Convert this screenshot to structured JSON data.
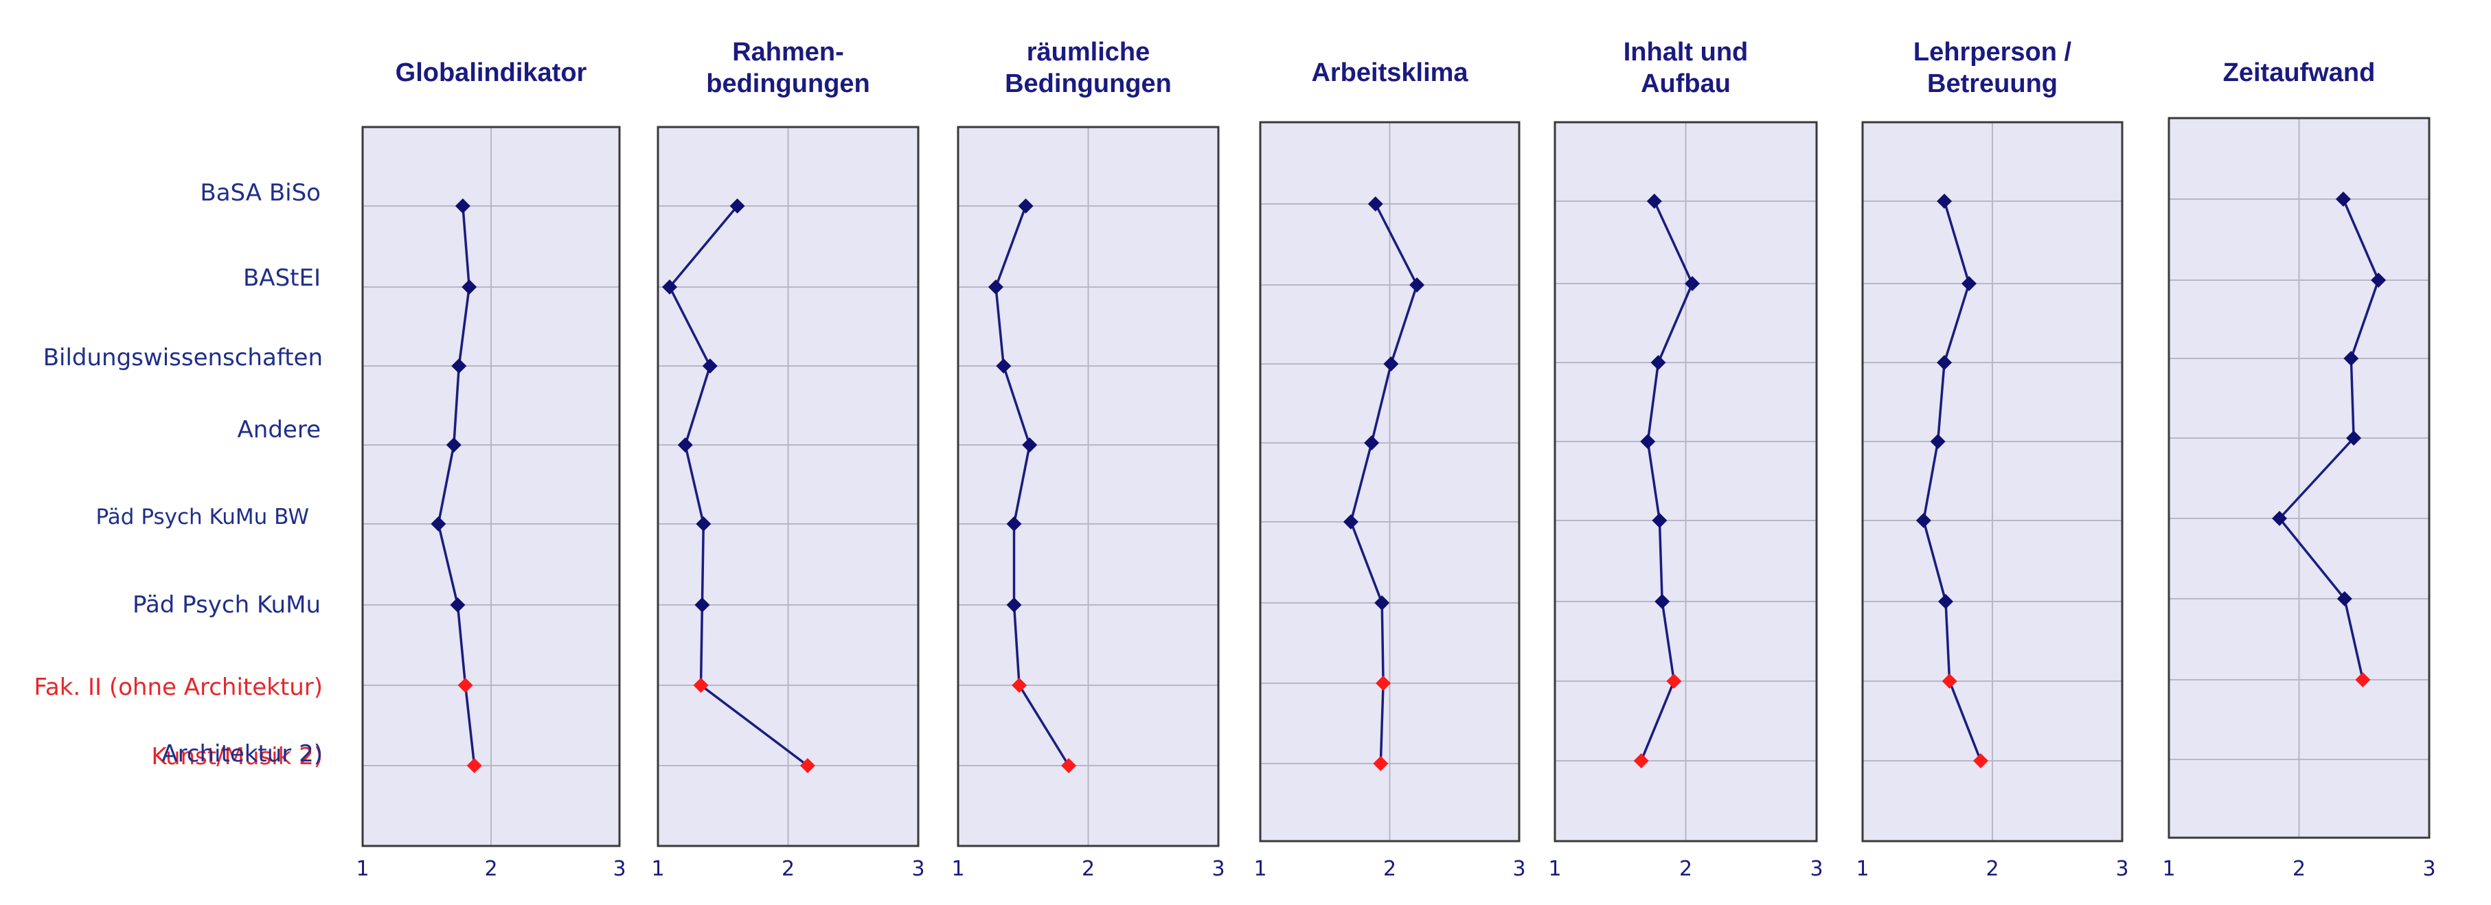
{
  "chart_data": {
    "type": "line",
    "orientation": "horizontal-profile",
    "categories": [
      "BaSA BiSo",
      "BAStEI",
      "Bildungswissenschaften",
      "Andere",
      "Päd Psych KuMu BW",
      "Päd Psych KuMu",
      "Fak. II (ohne Architektur)",
      "Kunst/Musik 2)"
    ],
    "overlay_label": "Architektur 2)",
    "xlim": [
      1,
      3
    ],
    "xticks": [
      "1",
      "2",
      "3"
    ],
    "grid": true,
    "colors": {
      "line": "#1c1c80",
      "marker": "#0f0f70",
      "highlight": "#ff1a1a",
      "panel_bg": "#e6e6f4",
      "grid": "#b7b7c6",
      "title": "#1a1a80",
      "label": "#1f2e8a",
      "label_red": "#e8262a"
    },
    "panels": [
      {
        "title_lines": [
          "Globalindikator"
        ],
        "values": [
          1.78,
          1.83,
          1.75,
          1.71,
          1.59,
          1.74,
          1.8,
          1.87
        ],
        "highlight": [
          6,
          7
        ]
      },
      {
        "title_lines": [
          "Rahmen-",
          "bedingungen"
        ],
        "values": [
          1.61,
          1.09,
          1.4,
          1.21,
          1.35,
          1.34,
          1.33,
          2.15
        ],
        "highlight": [
          6,
          7
        ]
      },
      {
        "title_lines": [
          "räumliche",
          "Bedingungen"
        ],
        "values": [
          1.52,
          1.29,
          1.35,
          1.55,
          1.43,
          1.43,
          1.47,
          1.85
        ],
        "highlight": [
          6,
          7
        ]
      },
      {
        "title_lines": [
          "Arbeitsklima"
        ],
        "values": [
          1.89,
          2.21,
          2.01,
          1.86,
          1.7,
          1.94,
          1.95,
          1.93
        ],
        "highlight": [
          6,
          7
        ]
      },
      {
        "title_lines": [
          "Inhalt und",
          "Aufbau"
        ],
        "values": [
          1.76,
          2.05,
          1.79,
          1.71,
          1.8,
          1.82,
          1.91,
          1.66
        ],
        "highlight": [
          6,
          7
        ]
      },
      {
        "title_lines": [
          "Lehrperson /",
          "Betreuung"
        ],
        "values": [
          1.63,
          1.82,
          1.63,
          1.58,
          1.47,
          1.64,
          1.67,
          1.91
        ],
        "highlight": [
          6,
          7
        ]
      },
      {
        "title_lines": [
          "Zeitaufwand"
        ],
        "values": [
          2.34,
          2.61,
          2.4,
          2.42,
          1.85,
          2.35,
          2.49
        ],
        "highlight": [
          6
        ]
      }
    ]
  }
}
